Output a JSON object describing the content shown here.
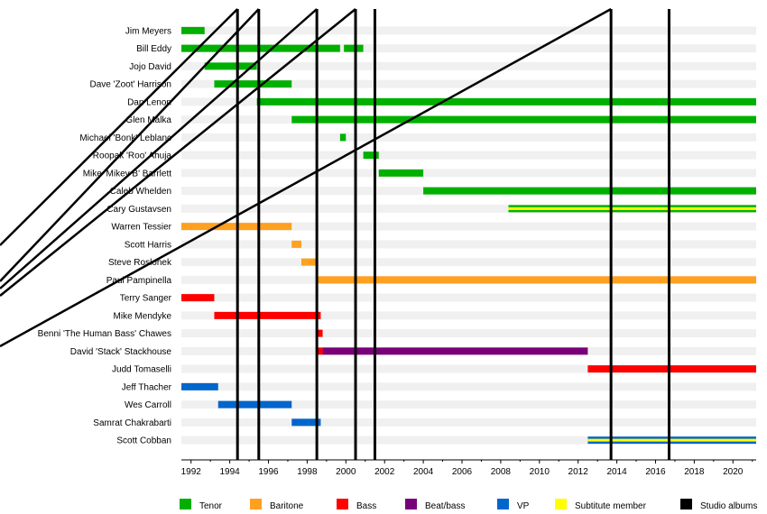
{
  "chart_data": {
    "type": "timeline",
    "xlim": [
      1991.5,
      2021.2
    ],
    "ticks": [
      1992,
      1994,
      1996,
      1998,
      2000,
      2002,
      2004,
      2006,
      2008,
      2010,
      2012,
      2014,
      2016,
      2018,
      2020
    ],
    "members": [
      "Jim Meyers",
      "Bill Eddy",
      "Jojo David",
      "Dave 'Zoot' Harrison",
      "Dan Lenon",
      "Glen Malka",
      "Michael 'Bonk' Leblanc",
      "Roopak 'Roo' Ahuja",
      "Mike 'Mikey B' Barrlett",
      "Caleb Whelden",
      "Cary Gustavsen",
      "Warren Tessier",
      "Scott Harris",
      "Steve Roslonek",
      "Paul Pampinella",
      "Terry Sanger",
      "Mike Mendyke",
      "Benni 'The Human Bass' Chawes",
      "David 'Stack' Stackhouse",
      "Judd Tomaselli",
      "Jeff Thacher",
      "Wes Carroll",
      "Samrat Chakrabarti",
      "Scott Cobban"
    ],
    "bars": [
      {
        "member": 0,
        "start": 1991.5,
        "end": 1992.7,
        "role": "Tenor"
      },
      {
        "member": 1,
        "start": 1991.5,
        "end": 1999.7,
        "role": "Tenor"
      },
      {
        "member": 1,
        "start": 1999.9,
        "end": 2000.9,
        "role": "Tenor"
      },
      {
        "member": 2,
        "start": 1992.7,
        "end": 1995.4,
        "role": "Tenor"
      },
      {
        "member": 3,
        "start": 1993.2,
        "end": 1997.2,
        "role": "Tenor"
      },
      {
        "member": 4,
        "start": 1995.4,
        "end": 2021.2,
        "role": "Tenor"
      },
      {
        "member": 5,
        "start": 1997.2,
        "end": 2021.2,
        "role": "Tenor"
      },
      {
        "member": 6,
        "start": 1999.7,
        "end": 2000.0,
        "role": "Tenor"
      },
      {
        "member": 7,
        "start": 2000.9,
        "end": 2001.7,
        "role": "Tenor"
      },
      {
        "member": 8,
        "start": 2001.7,
        "end": 2004.0,
        "role": "Tenor"
      },
      {
        "member": 9,
        "start": 2004.0,
        "end": 2021.2,
        "role": "Tenor"
      },
      {
        "member": 10,
        "start": 2008.4,
        "end": 2021.2,
        "role": "Tenor",
        "substitute": true
      },
      {
        "member": 11,
        "start": 1991.5,
        "end": 1997.2,
        "role": "Baritone"
      },
      {
        "member": 12,
        "start": 1997.2,
        "end": 1997.7,
        "role": "Baritone"
      },
      {
        "member": 13,
        "start": 1997.7,
        "end": 1998.5,
        "role": "Baritone"
      },
      {
        "member": 14,
        "start": 1998.5,
        "end": 2021.2,
        "role": "Baritone"
      },
      {
        "member": 15,
        "start": 1991.5,
        "end": 1993.2,
        "role": "Bass"
      },
      {
        "member": 16,
        "start": 1993.2,
        "end": 1998.7,
        "role": "Bass"
      },
      {
        "member": 17,
        "start": 1998.5,
        "end": 1998.8,
        "role": "Bass"
      },
      {
        "member": 18,
        "start": 1998.5,
        "end": 1998.8,
        "role": "Bass"
      },
      {
        "member": 18,
        "start": 1998.8,
        "end": 2012.5,
        "role": "Beat/bass"
      },
      {
        "member": 19,
        "start": 2012.5,
        "end": 2021.2,
        "role": "Bass"
      },
      {
        "member": 20,
        "start": 1991.5,
        "end": 1993.4,
        "role": "VP"
      },
      {
        "member": 21,
        "start": 1993.4,
        "end": 1997.2,
        "role": "VP"
      },
      {
        "member": 22,
        "start": 1997.2,
        "end": 1998.7,
        "role": "VP"
      },
      {
        "member": 23,
        "start": 2012.5,
        "end": 2021.2,
        "role": "VP",
        "substitute": true
      }
    ],
    "studio_albums": [
      1994.4,
      1995.5,
      1998.5,
      2000.5,
      2001.5,
      2013.7,
      2016.7
    ],
    "grid": true,
    "legend_position": "bottom",
    "colors": {
      "Tenor": "#00b000",
      "Baritone": "#ffa020",
      "Bass": "#ff0000",
      "Beat/bass": "#780078",
      "VP": "#0066cc",
      "Subtitute member": "#ffff00",
      "Studio albums": "#000000"
    },
    "legend": [
      "Tenor",
      "Baritone",
      "Bass",
      "Beat/bass",
      "VP",
      "Subtitute member",
      "Studio albums"
    ]
  }
}
